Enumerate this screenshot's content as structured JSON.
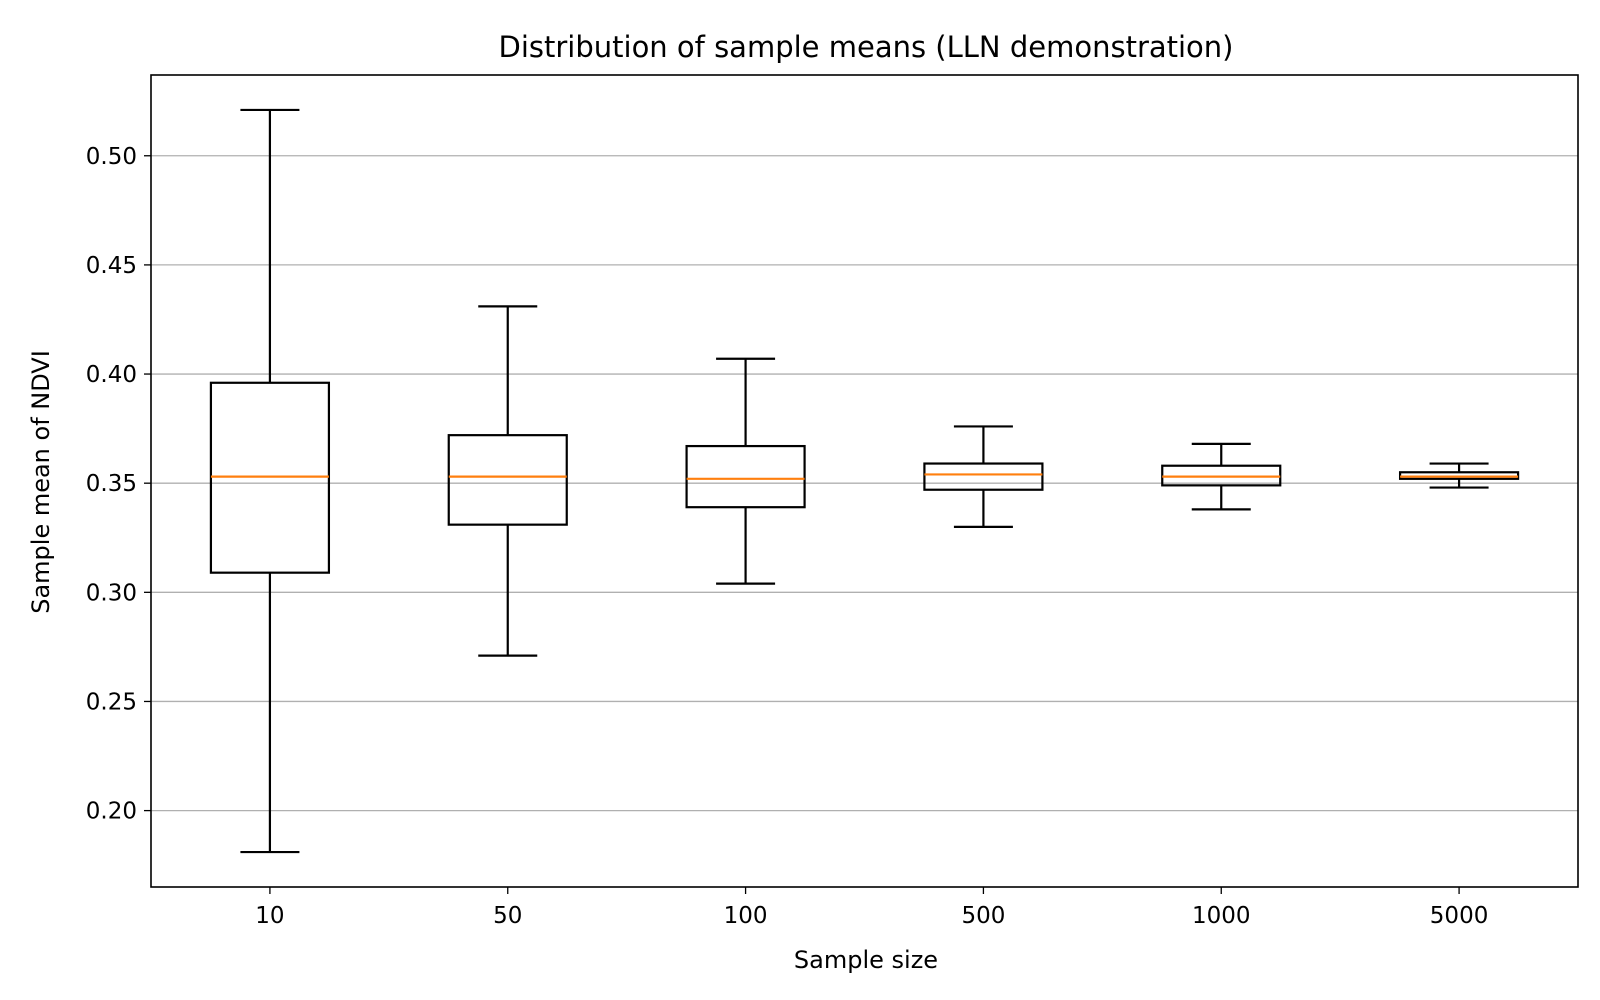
{
  "chart_data": {
    "type": "box",
    "title": "Distribution of sample means (LLN demonstration)",
    "xlabel": "Sample size",
    "ylabel": "Sample mean of NDVI",
    "categories": [
      "10",
      "50",
      "100",
      "500",
      "1000",
      "5000"
    ],
    "boxes": [
      {
        "category": "10",
        "whisker_low": 0.181,
        "q1": 0.309,
        "median": 0.353,
        "q3": 0.396,
        "whisker_high": 0.521
      },
      {
        "category": "50",
        "whisker_low": 0.271,
        "q1": 0.331,
        "median": 0.353,
        "q3": 0.372,
        "whisker_high": 0.431
      },
      {
        "category": "100",
        "whisker_low": 0.304,
        "q1": 0.339,
        "median": 0.352,
        "q3": 0.367,
        "whisker_high": 0.407
      },
      {
        "category": "500",
        "whisker_low": 0.33,
        "q1": 0.347,
        "median": 0.354,
        "q3": 0.359,
        "whisker_high": 0.376
      },
      {
        "category": "1000",
        "whisker_low": 0.338,
        "q1": 0.349,
        "median": 0.353,
        "q3": 0.358,
        "whisker_high": 0.368
      },
      {
        "category": "5000",
        "whisker_low": 0.348,
        "q1": 0.352,
        "median": 0.353,
        "q3": 0.355,
        "whisker_high": 0.359
      }
    ],
    "yticks": [
      0.2,
      0.25,
      0.3,
      0.35,
      0.4,
      0.45,
      0.5
    ],
    "ytick_labels": [
      "0.20",
      "0.25",
      "0.30",
      "0.35",
      "0.40",
      "0.45",
      "0.50"
    ],
    "ylim": [
      0.165,
      0.537
    ],
    "grid": "y",
    "legend": "none",
    "colors": {
      "box": "#000000",
      "median": "#ff7f0e",
      "grid": "#b0b0b0",
      "frame": "#000000"
    }
  }
}
